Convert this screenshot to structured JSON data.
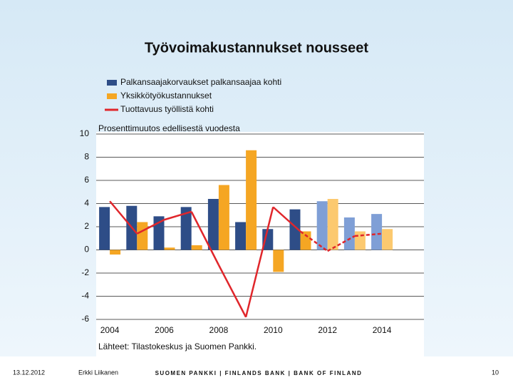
{
  "chart_data": {
    "type": "bar",
    "title": "Työvoimakustannukset nousseet",
    "subtitle": "Prosenttimuutos edellisestä vuodesta",
    "source": "Lähteet: Tilastokeskus ja Suomen Pankki.",
    "categories": [
      "2004",
      null,
      "2006",
      null,
      "2008",
      null,
      "2010",
      null,
      "2012",
      null,
      "2014"
    ],
    "series": [
      {
        "name": "Palkansaajakorvaukset palkansaajaa kohti",
        "type": "bar",
        "color": "#2e4d87",
        "colors": [
          "#2e4d87",
          "#2e4d87",
          "#2e4d87",
          "#2e4d87",
          "#2e4d87",
          "#2e4d87",
          "#2e4d87",
          "#2e4d87",
          "#7f9fd6",
          "#7f9fd6",
          "#7f9fd6"
        ],
        "values": [
          3.7,
          3.8,
          2.9,
          3.7,
          4.4,
          2.4,
          1.8,
          3.5,
          4.2,
          2.8,
          3.1
        ]
      },
      {
        "name": "Yksikkötyökustannukset",
        "type": "bar",
        "color": "#f5a623",
        "colors": [
          "#f5a623",
          "#f5a623",
          "#f5a623",
          "#f5a623",
          "#f5a623",
          "#f5a623",
          "#f5a623",
          "#f5a623",
          "#fcc96f",
          "#fcc96f",
          "#fcc96f"
        ],
        "values": [
          -0.4,
          2.4,
          0.2,
          0.4,
          5.6,
          8.6,
          -1.9,
          1.6,
          4.4,
          1.6,
          1.8
        ]
      },
      {
        "name": "Tuottavuus työllistä kohti",
        "type": "line",
        "color": "#e0262b",
        "dashed": [
          false,
          false,
          false,
          false,
          false,
          false,
          false,
          false,
          true,
          true,
          true
        ],
        "values": [
          4.2,
          1.4,
          2.6,
          3.3,
          -1.3,
          -5.8,
          3.7,
          1.6,
          -0.1,
          1.2,
          1.4
        ]
      }
    ],
    "ylim": [
      -6,
      10
    ],
    "yticks": [
      -6,
      -4,
      -2,
      0,
      2,
      4,
      6,
      8,
      10
    ],
    "grid": true
  },
  "footer": {
    "date": "13.12.2012",
    "author": "Erkki Liikanen",
    "organization": "SUOMEN PANKKI | FINLANDS BANK | BANK OF FINLAND",
    "page": "10"
  }
}
